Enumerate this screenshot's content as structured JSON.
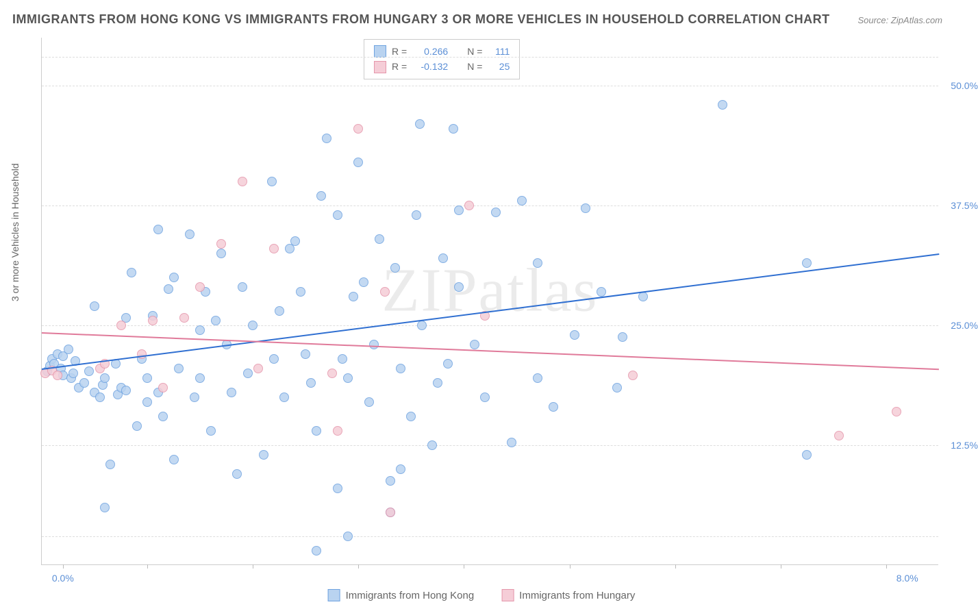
{
  "title": "IMMIGRANTS FROM HONG KONG VS IMMIGRANTS FROM HUNGARY 3 OR MORE VEHICLES IN HOUSEHOLD CORRELATION CHART",
  "source": "Source: ZipAtlas.com",
  "ylabel": "3 or more Vehicles in Household",
  "watermark": "ZIPatlas",
  "chart": {
    "type": "scatter",
    "xlim": [
      0,
      8.5
    ],
    "ylim": [
      0,
      55
    ],
    "x_axis_labels": [
      {
        "value": "0.0%",
        "at": 0.2
      },
      {
        "value": "8.0%",
        "at": 8.2
      }
    ],
    "y_axis_labels": [
      {
        "value": "12.5%",
        "at": 12.5
      },
      {
        "value": "25.0%",
        "at": 25.0
      },
      {
        "value": "37.5%",
        "at": 37.5
      },
      {
        "value": "50.0%",
        "at": 50.0
      }
    ],
    "x_tick_positions": [
      0.2,
      1.0,
      2.0,
      3.0,
      4.0,
      5.0,
      6.0,
      7.0,
      8.0
    ],
    "y_gridlines": [
      3,
      12.5,
      25,
      37.5,
      50,
      53
    ],
    "background_color": "#ffffff",
    "grid_color": "#dddddd",
    "series": [
      {
        "name": "Immigrants from Hong Kong",
        "color_fill": "#b9d3f0",
        "color_stroke": "#6fa3e0",
        "marker_size": 14,
        "R": "0.266",
        "N": "111",
        "trend": {
          "x1": 0,
          "y1": 20.5,
          "x2": 8.5,
          "y2": 32.5,
          "color": "#2f6fd1",
          "width": 2
        },
        "points": [
          [
            0.05,
            20.2
          ],
          [
            0.08,
            20.8
          ],
          [
            0.1,
            21.5
          ],
          [
            0.12,
            21.0
          ],
          [
            0.15,
            22.0
          ],
          [
            0.18,
            20.5
          ],
          [
            0.2,
            21.8
          ],
          [
            0.2,
            19.8
          ],
          [
            0.25,
            22.5
          ],
          [
            0.28,
            19.5
          ],
          [
            0.3,
            20.0
          ],
          [
            0.32,
            21.3
          ],
          [
            0.35,
            18.5
          ],
          [
            0.4,
            19.0
          ],
          [
            0.45,
            20.2
          ],
          [
            0.5,
            18.0
          ],
          [
            0.5,
            27.0
          ],
          [
            0.55,
            17.5
          ],
          [
            0.58,
            18.8
          ],
          [
            0.6,
            19.5
          ],
          [
            0.6,
            6.0
          ],
          [
            0.65,
            10.5
          ],
          [
            0.7,
            21.0
          ],
          [
            0.72,
            17.8
          ],
          [
            0.75,
            18.5
          ],
          [
            0.8,
            18.2
          ],
          [
            0.8,
            25.8
          ],
          [
            0.85,
            30.5
          ],
          [
            0.9,
            14.5
          ],
          [
            0.95,
            21.5
          ],
          [
            1.0,
            17.0
          ],
          [
            1.0,
            19.5
          ],
          [
            1.05,
            26.0
          ],
          [
            1.1,
            18.0
          ],
          [
            1.1,
            35.0
          ],
          [
            1.15,
            15.5
          ],
          [
            1.2,
            28.8
          ],
          [
            1.25,
            30.0
          ],
          [
            1.25,
            11.0
          ],
          [
            1.3,
            20.5
          ],
          [
            1.4,
            34.5
          ],
          [
            1.45,
            17.5
          ],
          [
            1.5,
            19.5
          ],
          [
            1.5,
            24.5
          ],
          [
            1.55,
            28.5
          ],
          [
            1.6,
            14.0
          ],
          [
            1.65,
            25.5
          ],
          [
            1.7,
            32.5
          ],
          [
            1.75,
            23.0
          ],
          [
            1.8,
            18.0
          ],
          [
            1.85,
            9.5
          ],
          [
            1.9,
            29.0
          ],
          [
            1.95,
            20.0
          ],
          [
            2.0,
            25.0
          ],
          [
            2.1,
            11.5
          ],
          [
            2.18,
            40.0
          ],
          [
            2.2,
            21.5
          ],
          [
            2.25,
            26.5
          ],
          [
            2.3,
            17.5
          ],
          [
            2.35,
            33.0
          ],
          [
            2.4,
            33.8
          ],
          [
            2.45,
            28.5
          ],
          [
            2.5,
            22.0
          ],
          [
            2.55,
            19.0
          ],
          [
            2.6,
            1.5
          ],
          [
            2.6,
            14.0
          ],
          [
            2.65,
            38.5
          ],
          [
            2.7,
            44.5
          ],
          [
            2.8,
            8.0
          ],
          [
            2.8,
            36.5
          ],
          [
            2.85,
            21.5
          ],
          [
            2.9,
            19.5
          ],
          [
            2.9,
            3.0
          ],
          [
            2.95,
            28.0
          ],
          [
            3.0,
            42.0
          ],
          [
            3.05,
            29.5
          ],
          [
            3.1,
            17.0
          ],
          [
            3.15,
            23.0
          ],
          [
            3.2,
            34.0
          ],
          [
            3.3,
            5.5
          ],
          [
            3.3,
            8.8
          ],
          [
            3.35,
            31.0
          ],
          [
            3.4,
            10.0
          ],
          [
            3.4,
            20.5
          ],
          [
            3.5,
            15.5
          ],
          [
            3.55,
            36.5
          ],
          [
            3.58,
            46.0
          ],
          [
            3.9,
            45.5
          ],
          [
            3.6,
            25.0
          ],
          [
            3.7,
            12.5
          ],
          [
            3.75,
            19.0
          ],
          [
            3.8,
            32.0
          ],
          [
            3.85,
            21.0
          ],
          [
            3.95,
            29.0
          ],
          [
            3.95,
            37.0
          ],
          [
            4.1,
            23.0
          ],
          [
            4.2,
            17.5
          ],
          [
            4.3,
            36.8
          ],
          [
            4.45,
            12.8
          ],
          [
            4.55,
            38.0
          ],
          [
            4.7,
            31.5
          ],
          [
            4.7,
            19.5
          ],
          [
            4.85,
            16.5
          ],
          [
            5.05,
            24.0
          ],
          [
            5.15,
            37.2
          ],
          [
            5.3,
            28.5
          ],
          [
            5.45,
            18.5
          ],
          [
            5.5,
            23.8
          ],
          [
            5.7,
            28.0
          ],
          [
            6.45,
            48.0
          ],
          [
            7.25,
            11.5
          ],
          [
            7.25,
            31.5
          ]
        ]
      },
      {
        "name": "Immigrants from Hungary",
        "color_fill": "#f5cdd7",
        "color_stroke": "#e596ab",
        "marker_size": 14,
        "R": "-0.132",
        "N": "25",
        "trend": {
          "x1": 0,
          "y1": 24.3,
          "x2": 8.5,
          "y2": 20.5,
          "color": "#e07a9a",
          "width": 2
        },
        "points": [
          [
            0.03,
            20.0
          ],
          [
            0.1,
            20.3
          ],
          [
            0.15,
            19.8
          ],
          [
            0.55,
            20.5
          ],
          [
            0.6,
            21.0
          ],
          [
            0.75,
            25.0
          ],
          [
            0.95,
            22.0
          ],
          [
            1.05,
            25.5
          ],
          [
            1.15,
            18.5
          ],
          [
            1.35,
            25.8
          ],
          [
            1.5,
            29.0
          ],
          [
            1.7,
            33.5
          ],
          [
            1.9,
            40.0
          ],
          [
            2.05,
            20.5
          ],
          [
            2.2,
            33.0
          ],
          [
            2.75,
            20.0
          ],
          [
            2.8,
            14.0
          ],
          [
            3.0,
            45.5
          ],
          [
            3.25,
            28.5
          ],
          [
            3.3,
            5.5
          ],
          [
            4.05,
            37.5
          ],
          [
            4.2,
            26.0
          ],
          [
            5.6,
            19.8
          ],
          [
            7.55,
            13.5
          ],
          [
            8.1,
            16.0
          ]
        ]
      }
    ]
  },
  "top_legend": {
    "rows": [
      {
        "swatch_fill": "#b9d3f0",
        "swatch_stroke": "#6fa3e0",
        "r_label": "R =",
        "r_val": "0.266",
        "n_label": "N =",
        "n_val": "111"
      },
      {
        "swatch_fill": "#f5cdd7",
        "swatch_stroke": "#e596ab",
        "r_label": "R =",
        "r_val": "-0.132",
        "n_label": "N =",
        "n_val": "25"
      }
    ]
  },
  "bottom_legend": [
    {
      "swatch_fill": "#b9d3f0",
      "swatch_stroke": "#6fa3e0",
      "label": "Immigrants from Hong Kong"
    },
    {
      "swatch_fill": "#f5cdd7",
      "swatch_stroke": "#e596ab",
      "label": "Immigrants from Hungary"
    }
  ]
}
